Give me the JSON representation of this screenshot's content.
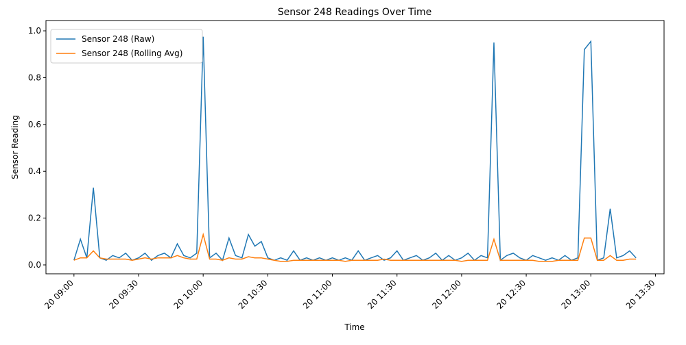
{
  "chart_data": {
    "type": "line",
    "title": "Sensor 248 Readings Over Time",
    "xlabel": "Time",
    "ylabel": "Sensor Reading",
    "x": [
      "20 09:00",
      "20 09:03",
      "20 09:06",
      "20 09:09",
      "20 09:12",
      "20 09:15",
      "20 09:18",
      "20 09:21",
      "20 09:24",
      "20 09:27",
      "20 09:30",
      "20 09:33",
      "20 09:36",
      "20 09:39",
      "20 09:42",
      "20 09:45",
      "20 09:48",
      "20 09:51",
      "20 09:54",
      "20 09:57",
      "20 10:00",
      "20 10:03",
      "20 10:06",
      "20 10:09",
      "20 10:12",
      "20 10:15",
      "20 10:18",
      "20 10:21",
      "20 10:24",
      "20 10:27",
      "20 10:30",
      "20 10:33",
      "20 10:36",
      "20 10:39",
      "20 10:42",
      "20 10:45",
      "20 10:48",
      "20 10:51",
      "20 10:54",
      "20 10:57",
      "20 11:00",
      "20 11:03",
      "20 11:06",
      "20 11:09",
      "20 11:12",
      "20 11:15",
      "20 11:18",
      "20 11:21",
      "20 11:24",
      "20 11:27",
      "20 11:30",
      "20 11:33",
      "20 11:36",
      "20 11:39",
      "20 11:42",
      "20 11:45",
      "20 11:48",
      "20 11:51",
      "20 11:54",
      "20 11:57",
      "20 12:00",
      "20 12:03",
      "20 12:06",
      "20 12:09",
      "20 12:12",
      "20 12:15",
      "20 12:18",
      "20 12:21",
      "20 12:24",
      "20 12:27",
      "20 12:30",
      "20 12:33",
      "20 12:36",
      "20 12:39",
      "20 12:42",
      "20 12:45",
      "20 12:48",
      "20 12:51",
      "20 12:54",
      "20 12:57",
      "20 13:00",
      "20 13:03",
      "20 13:06",
      "20 13:09",
      "20 13:12",
      "20 13:15",
      "20 13:18",
      "20 13:21"
    ],
    "series": [
      {
        "name": "Sensor 248 (Raw)",
        "color": "#1f77b4",
        "values": [
          0.02,
          0.11,
          0.03,
          0.33,
          0.03,
          0.02,
          0.04,
          0.03,
          0.05,
          0.02,
          0.03,
          0.05,
          0.02,
          0.04,
          0.05,
          0.03,
          0.09,
          0.04,
          0.03,
          0.05,
          0.975,
          0.03,
          0.05,
          0.02,
          0.115,
          0.04,
          0.03,
          0.13,
          0.08,
          0.1,
          0.03,
          0.02,
          0.03,
          0.02,
          0.06,
          0.02,
          0.03,
          0.02,
          0.03,
          0.02,
          0.03,
          0.02,
          0.03,
          0.02,
          0.06,
          0.02,
          0.03,
          0.04,
          0.02,
          0.03,
          0.06,
          0.02,
          0.03,
          0.04,
          0.02,
          0.03,
          0.05,
          0.02,
          0.04,
          0.02,
          0.03,
          0.05,
          0.02,
          0.04,
          0.03,
          0.95,
          0.02,
          0.04,
          0.05,
          0.03,
          0.02,
          0.04,
          0.03,
          0.02,
          0.03,
          0.02,
          0.04,
          0.02,
          0.03,
          0.92,
          0.955,
          0.02,
          0.03,
          0.24,
          0.03,
          0.04,
          0.06,
          0.03
        ]
      },
      {
        "name": "Sensor 248 (Rolling Avg)",
        "color": "#ff7f0e",
        "values": [
          0.02,
          0.03,
          0.03,
          0.06,
          0.03,
          0.025,
          0.025,
          0.025,
          0.025,
          0.02,
          0.025,
          0.03,
          0.025,
          0.03,
          0.03,
          0.03,
          0.04,
          0.03,
          0.025,
          0.025,
          0.13,
          0.025,
          0.025,
          0.02,
          0.03,
          0.025,
          0.025,
          0.035,
          0.03,
          0.03,
          0.025,
          0.02,
          0.015,
          0.015,
          0.02,
          0.02,
          0.02,
          0.02,
          0.02,
          0.02,
          0.02,
          0.02,
          0.015,
          0.02,
          0.02,
          0.02,
          0.02,
          0.02,
          0.025,
          0.02,
          0.02,
          0.02,
          0.02,
          0.02,
          0.02,
          0.02,
          0.02,
          0.02,
          0.02,
          0.02,
          0.015,
          0.02,
          0.02,
          0.02,
          0.02,
          0.11,
          0.02,
          0.02,
          0.02,
          0.02,
          0.02,
          0.02,
          0.015,
          0.015,
          0.015,
          0.02,
          0.02,
          0.02,
          0.02,
          0.115,
          0.115,
          0.02,
          0.02,
          0.04,
          0.02,
          0.02,
          0.025,
          0.025
        ]
      }
    ],
    "xlim": [
      "20 08:47",
      "20 13:34"
    ],
    "xticks": [
      "20 09:00",
      "20 09:30",
      "20 10:00",
      "20 10:30",
      "20 11:00",
      "20 11:30",
      "20 12:00",
      "20 12:30",
      "20 13:00",
      "20 13:30"
    ],
    "ylim": [
      -0.038,
      1.044
    ],
    "yticks": [
      {
        "value": 0,
        "label": "0.0"
      },
      0.2,
      0.4,
      0.6,
      0.8,
      {
        "value": 1,
        "label": "1.0"
      }
    ],
    "legend": "upper left"
  }
}
